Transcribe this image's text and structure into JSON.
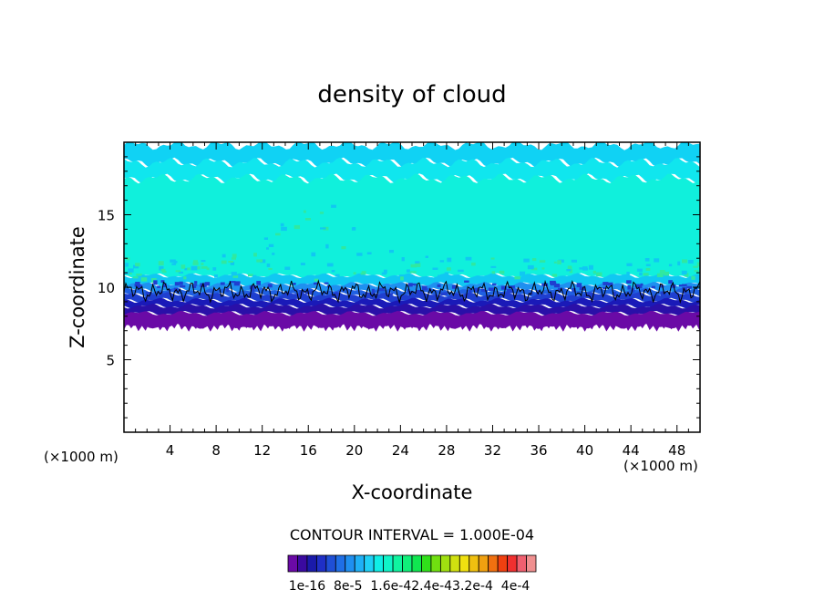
{
  "chart_data": {
    "type": "heatmap",
    "title": "density of cloud",
    "xlabel": "X-coordinate",
    "ylabel": "Z-coordinate",
    "x_unit": "(×1000 m)",
    "z_unit": "(×1000 m)",
    "xlim": [
      0,
      50
    ],
    "ylim": [
      0,
      20
    ],
    "x_ticks": [
      4,
      8,
      12,
      16,
      20,
      24,
      28,
      32,
      36,
      40,
      44,
      48
    ],
    "y_ticks": [
      5,
      10,
      15
    ],
    "contour_interval_text": "CONTOUR INTERVAL = 1.000E-04",
    "colorbar": {
      "colors": [
        "#6a0aa6",
        "#3a0aa0",
        "#1a1aaa",
        "#1f2fc6",
        "#1f4fd6",
        "#1f6fe6",
        "#1f8ff0",
        "#1fb0f6",
        "#1fd0f6",
        "#10eee6",
        "#10f4c8",
        "#10f4a0",
        "#10f07a",
        "#10e650",
        "#30e01a",
        "#70e010",
        "#a0e010",
        "#d0e010",
        "#f0e010",
        "#f0c010",
        "#f0a010",
        "#f07010",
        "#f04010",
        "#f03030",
        "#f06070",
        "#f09090"
      ],
      "labels": [
        "1e-16",
        "8e-5",
        "1.6e-4",
        "2.4e-4",
        "3.2e-4",
        "4e-4"
      ],
      "label_text": "1e-16  8e-5  1.6e-42.4e-43.2e-4  4e-4"
    },
    "cloud_layer": {
      "base_z": 7.3,
      "top_z": 19.8,
      "contour_z": 9.7,
      "bands": [
        {
          "z0": 7.3,
          "z1": 8.2,
          "color": "#6a0aa6"
        },
        {
          "z0": 8.2,
          "z1": 8.7,
          "color": "#2a10a8"
        },
        {
          "z0": 8.7,
          "z1": 9.1,
          "color": "#1a1ab8"
        },
        {
          "z0": 9.1,
          "z1": 9.5,
          "color": "#1f3fd0"
        },
        {
          "z0": 9.5,
          "z1": 9.8,
          "color": "#1f60e2"
        },
        {
          "z0": 9.8,
          "z1": 10.2,
          "color": "#1f90f0"
        },
        {
          "z0": 10.2,
          "z1": 10.8,
          "color": "#10c8f2"
        },
        {
          "z0": 10.8,
          "z1": 17.5,
          "color": "#10f0dc"
        },
        {
          "z0": 17.5,
          "z1": 18.6,
          "color": "#10e6ee"
        },
        {
          "z0": 18.6,
          "z1": 19.8,
          "color": "#10d2f4"
        }
      ]
    }
  }
}
